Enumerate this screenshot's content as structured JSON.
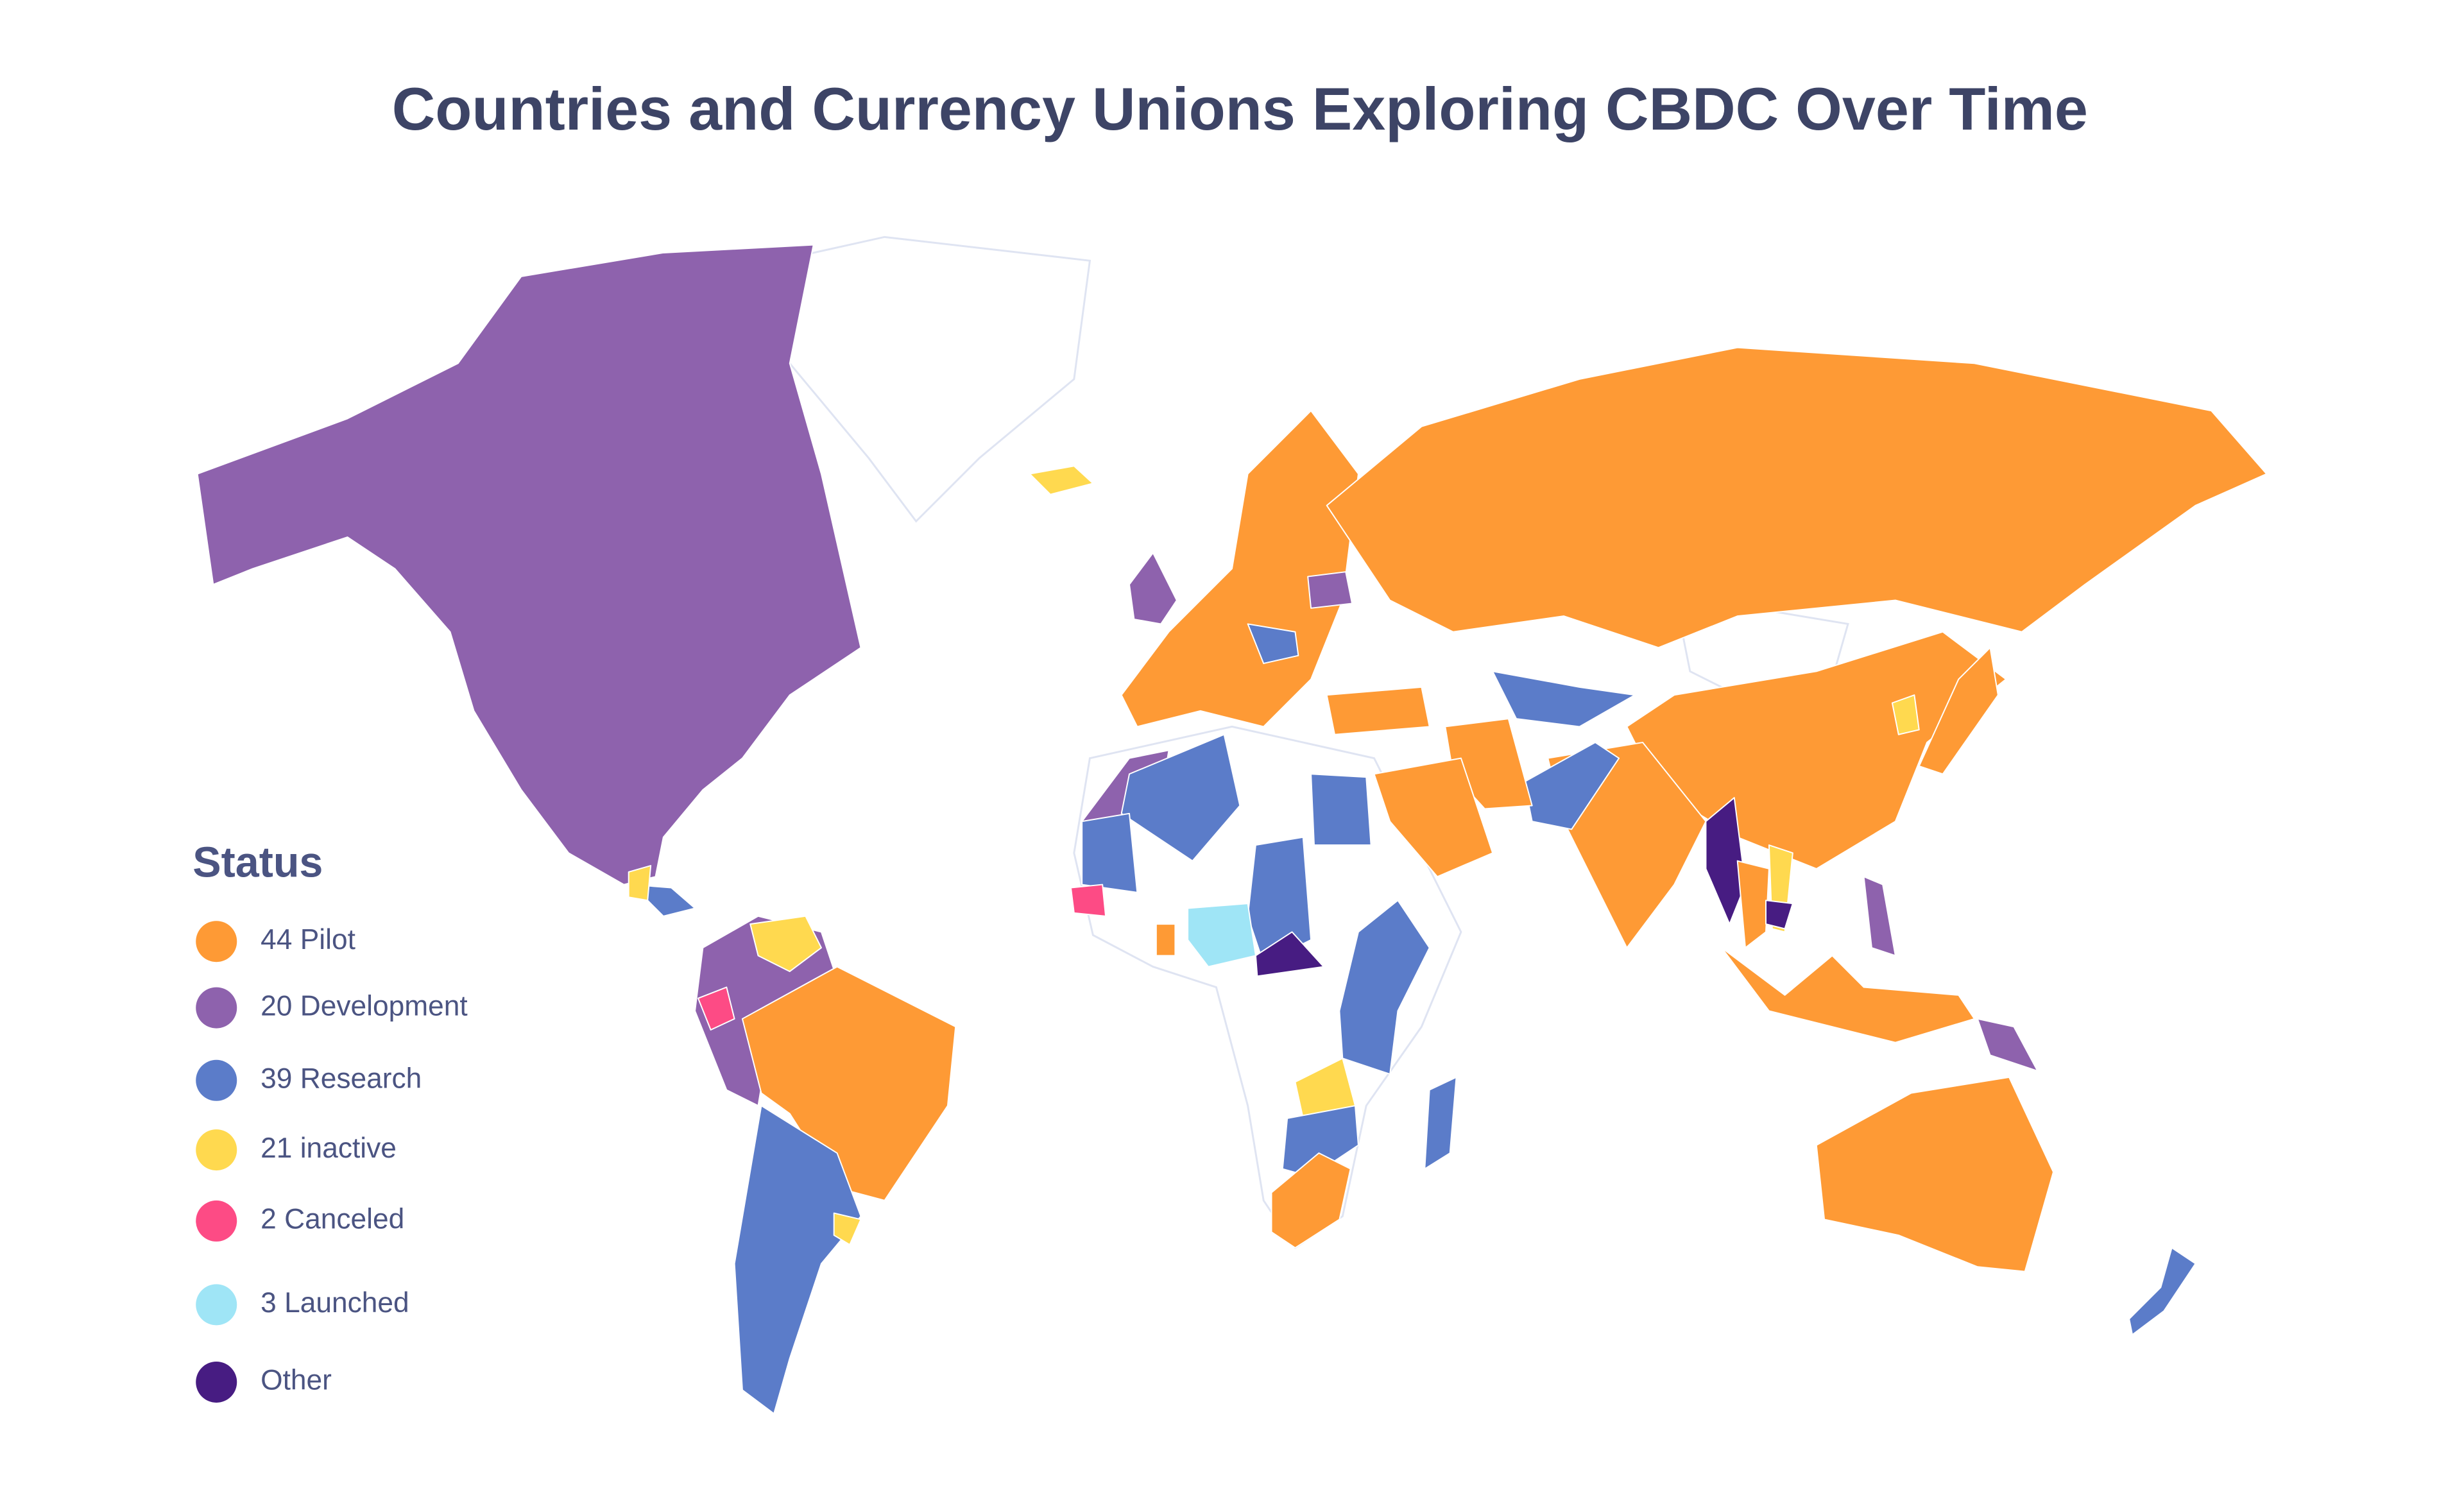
{
  "title": "Countries and Currency Unions Exploring CBDC Over Time",
  "legend": {
    "title": "Status",
    "items": [
      {
        "label": "44 Pilot",
        "color": "#fe9a35"
      },
      {
        "label": "20 Development",
        "color": "#8e62ad"
      },
      {
        "label": "39 Research",
        "color": "#5b7cc9"
      },
      {
        "label": "21 inactive",
        "color": "#ffd94f"
      },
      {
        "label": "2 Canceled",
        "color": "#fd4b85"
      },
      {
        "label": "3 Launched",
        "color": "#9fe5f6"
      },
      {
        "label": "Other",
        "color": "#471c82"
      }
    ]
  }
}
